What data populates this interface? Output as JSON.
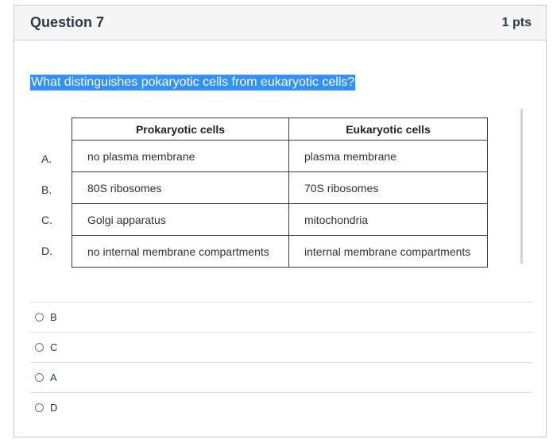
{
  "header": {
    "title": "Question 7",
    "points": "1 pts"
  },
  "question": {
    "text": "What distinguishes pokaryotic cells from eukaryotic cells?"
  },
  "table": {
    "headers": [
      "Prokaryotic cells",
      "Eukaryotic cells"
    ],
    "rows": [
      {
        "label": "A.",
        "prokaryotic": "no plasma membrane",
        "eukaryotic": "plasma membrane"
      },
      {
        "label": "B.",
        "prokaryotic": "80S ribosomes",
        "eukaryotic": "70S ribosomes"
      },
      {
        "label": "C.",
        "prokaryotic": "Golgi apparatus",
        "eukaryotic": "mitochondria"
      },
      {
        "label": "D.",
        "prokaryotic": "no internal membrane compartments",
        "eukaryotic": "internal membrane compartments"
      }
    ]
  },
  "answers": [
    {
      "label": "B"
    },
    {
      "label": "C"
    },
    {
      "label": "A"
    },
    {
      "label": "D"
    }
  ],
  "colors": {
    "highlight": "#3390ff",
    "border": "#c7cdd1",
    "header_bg": "#f5f5f5"
  }
}
